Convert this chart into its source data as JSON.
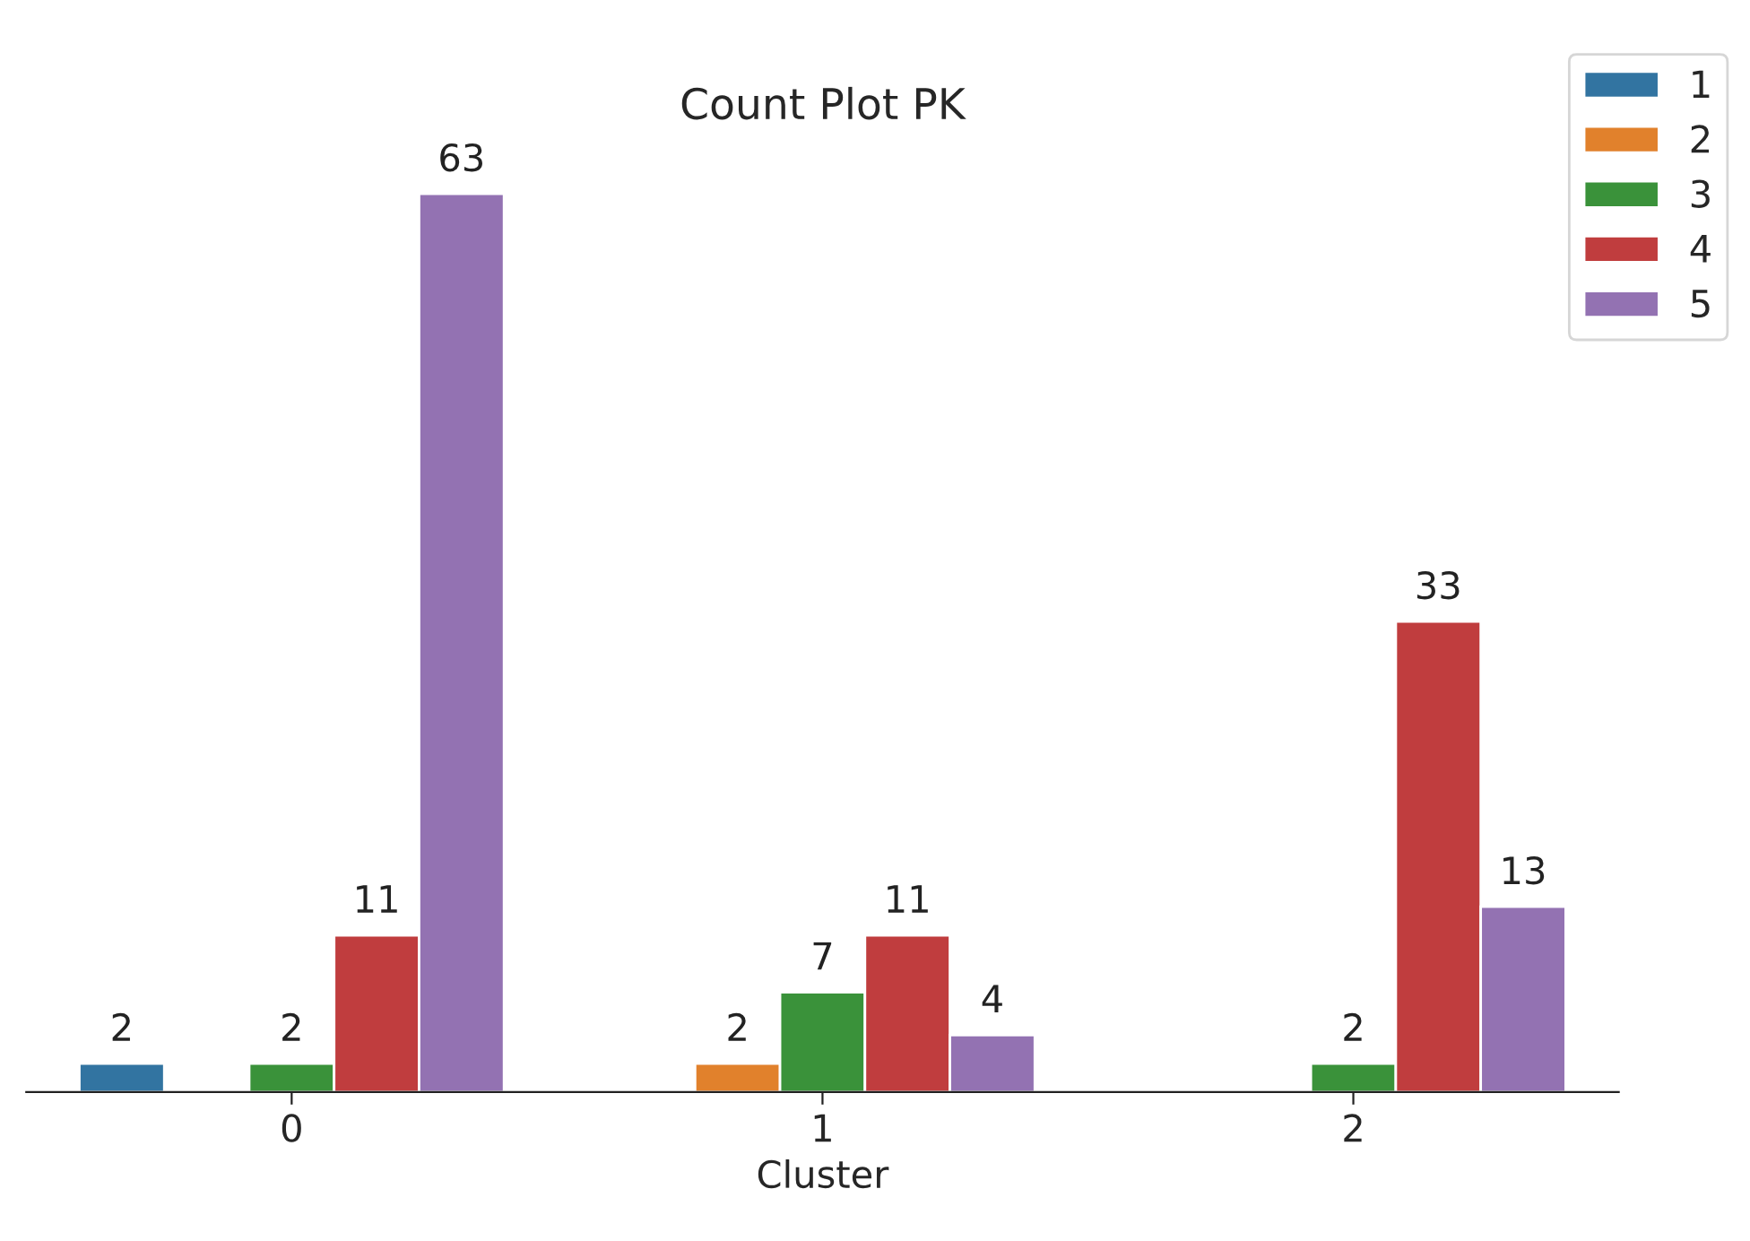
{
  "chart_data": {
    "type": "bar",
    "title": "Count Plot PK",
    "xlabel": "Cluster",
    "categories": [
      "0",
      "1",
      "2"
    ],
    "series": [
      {
        "name": "1",
        "color": "#3274a1",
        "values": [
          2,
          null,
          null
        ]
      },
      {
        "name": "2",
        "color": "#e1812c",
        "values": [
          null,
          2,
          null
        ]
      },
      {
        "name": "3",
        "color": "#3a923a",
        "values": [
          2,
          7,
          2
        ]
      },
      {
        "name": "4",
        "color": "#c03d3e",
        "values": [
          11,
          11,
          33
        ]
      },
      {
        "name": "5",
        "color": "#9372b2",
        "values": [
          63,
          4,
          13
        ]
      }
    ],
    "data_labels": true,
    "legend": "top right",
    "grid": false
  }
}
